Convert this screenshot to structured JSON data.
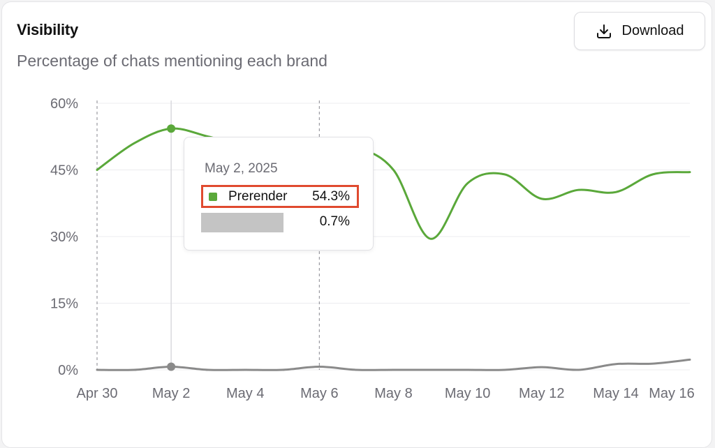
{
  "card": {
    "title": "Visibility",
    "subtitle": "Percentage of chats mentioning each brand",
    "download_label": "Download"
  },
  "tooltip": {
    "date": "May 2, 2025",
    "rows": [
      {
        "name": "Prerender",
        "value": "54.3%",
        "color": "#5aa83a",
        "highlighted": true
      },
      {
        "name": "",
        "value": "0.7%",
        "redacted": true
      }
    ]
  },
  "chart_data": {
    "type": "line",
    "title": "Visibility",
    "subtitle": "Percentage of chats mentioning each brand",
    "ylim": [
      0,
      60
    ],
    "y_ticks": [
      "0%",
      "15%",
      "30%",
      "45%",
      "60%"
    ],
    "x_ticks": [
      "Apr 30",
      "May 2",
      "May 4",
      "May 6",
      "May 8",
      "May 10",
      "May 12",
      "May 14",
      "May 16"
    ],
    "x": [
      "2025-04-30",
      "2025-05-01",
      "2025-05-02",
      "2025-05-03",
      "2025-05-04",
      "2025-05-05",
      "2025-05-06",
      "2025-05-07",
      "2025-05-08",
      "2025-05-09",
      "2025-05-10",
      "2025-05-11",
      "2025-05-12",
      "2025-05-13",
      "2025-05-14",
      "2025-05-15",
      "2025-05-16"
    ],
    "grid": true,
    "series": [
      {
        "name": "Prerender",
        "color": "#5aa83a",
        "values": [
          45,
          51,
          54.3,
          52.5,
          50.5,
          49.5,
          50,
          50,
          45,
          29.5,
          42,
          44,
          38.5,
          40.5,
          40,
          44,
          44.5
        ]
      },
      {
        "name": "",
        "color": "#8a8a8a",
        "values": [
          0,
          0,
          0.7,
          0,
          0,
          0,
          0.7,
          0,
          0,
          0,
          0,
          0,
          0.6,
          0,
          1.3,
          1.4,
          2.3
        ]
      }
    ],
    "highlight_x": "2025-05-02",
    "dashed_markers_x": [
      "2025-04-30",
      "2025-05-06"
    ]
  }
}
